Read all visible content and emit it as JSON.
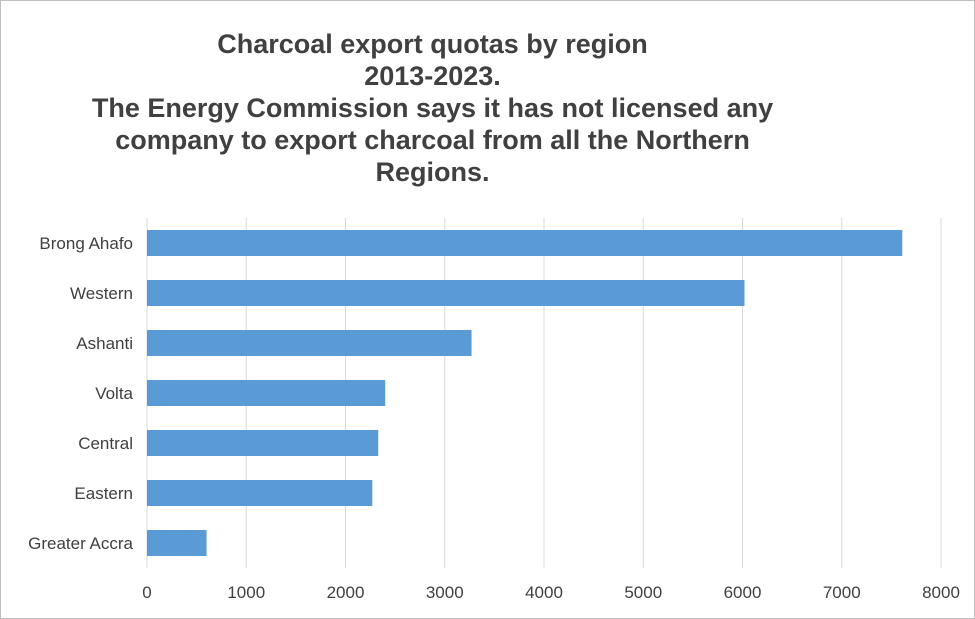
{
  "title_lines": [
    "Charcoal export quotas by region",
    "2013-2023.",
    "The Energy Commission says it has not licensed any",
    "company to export charcoal from all the Northern",
    "Regions."
  ],
  "chart_data": {
    "type": "bar",
    "orientation": "horizontal",
    "title": "Charcoal export quotas by region 2013-2023. The Energy Commission says it has not licensed any company to export charcoal from all the Northern Regions.",
    "categories": [
      "Brong Ahafo",
      "Western",
      "Ashanti",
      "Volta",
      "Central",
      "Eastern",
      "Greater Accra"
    ],
    "values": [
      7610,
      6020,
      3270,
      2400,
      2330,
      2270,
      600
    ],
    "xlabel": "",
    "ylabel": "",
    "xlim": [
      0,
      8000
    ],
    "xticks": [
      0,
      1000,
      2000,
      3000,
      4000,
      5000,
      6000,
      7000,
      8000
    ],
    "grid": "vertical",
    "legend": "none",
    "bar_color": "#5b9bd5",
    "grid_color": "#d9d9d9"
  }
}
